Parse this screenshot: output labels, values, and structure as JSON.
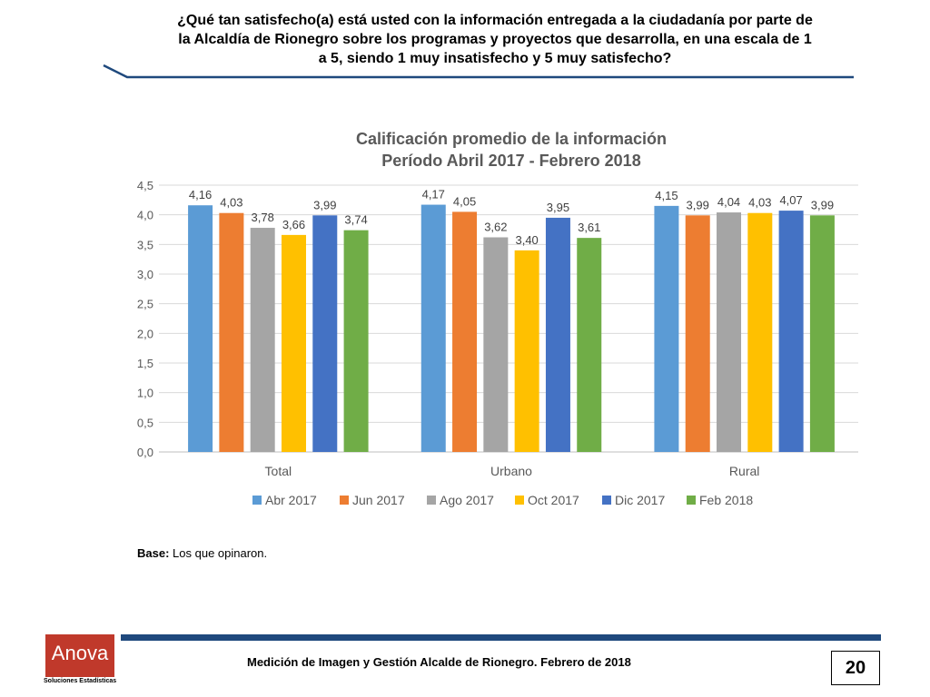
{
  "question": {
    "line1": "¿Qué tan satisfecho(a) está usted con la información entregada a la ciudadanía por parte de",
    "line2": "la Alcaldía de Rionegro sobre los programas y proyectos que desarrolla, en una escala de 1",
    "line3": "a 5, siendo 1 muy insatisfecho y 5 muy satisfecho?"
  },
  "base_note": {
    "label": "Base:",
    "text": " Los que opinaron."
  },
  "footer": {
    "text": "Medición de Imagen y Gestión Alcalde de Rionegro. Febrero de 2018",
    "page_number": "20",
    "logo_word": "Anova",
    "logo_subtitle": "Soluciones Estadísticas"
  },
  "colors": {
    "header_rule": "#1f497d",
    "footer_bar": "#1f497d",
    "logo": "#c0392b"
  },
  "chart_data": {
    "type": "bar",
    "title_line1": "Calificación promedio de la información",
    "title_line2": "Período Abril 2017 - Febrero 2018",
    "categories": [
      "Total",
      "Urbano",
      "Rural"
    ],
    "series": [
      {
        "name": "Abr 2017",
        "color": "#5b9bd5",
        "values": [
          4.16,
          4.17,
          4.15
        ],
        "labels": [
          "4,16",
          "4,17",
          "4,15"
        ]
      },
      {
        "name": "Jun 2017",
        "color": "#ed7d31",
        "values": [
          4.03,
          4.05,
          3.99
        ],
        "labels": [
          "4,03",
          "4,05",
          "3,99"
        ]
      },
      {
        "name": "Ago 2017",
        "color": "#a5a5a5",
        "values": [
          3.78,
          3.62,
          4.04
        ],
        "labels": [
          "3,78",
          "3,62",
          "4,04"
        ]
      },
      {
        "name": "Oct 2017",
        "color": "#ffc000",
        "values": [
          3.66,
          3.4,
          4.03
        ],
        "labels": [
          "3,66",
          "3,40",
          "4,03"
        ]
      },
      {
        "name": "Dic 2017",
        "color": "#4472c4",
        "values": [
          3.99,
          3.95,
          4.07
        ],
        "labels": [
          "3,99",
          "3,95",
          "4,07"
        ]
      },
      {
        "name": "Feb 2018",
        "color": "#70ad47",
        "values": [
          3.74,
          3.61,
          3.99
        ],
        "labels": [
          "3,74",
          "3,61",
          "3,99"
        ]
      }
    ],
    "y_ticks": [
      0,
      0.5,
      1.0,
      1.5,
      2.0,
      2.5,
      3.0,
      3.5,
      4.0,
      4.5
    ],
    "y_tick_labels": [
      "0,0",
      "0,5",
      "1,0",
      "1,5",
      "2,0",
      "2,5",
      "3,0",
      "3,5",
      "4,0",
      "4,5"
    ],
    "ylim": [
      0,
      4.5
    ],
    "grid": true,
    "legend_position": "bottom"
  }
}
